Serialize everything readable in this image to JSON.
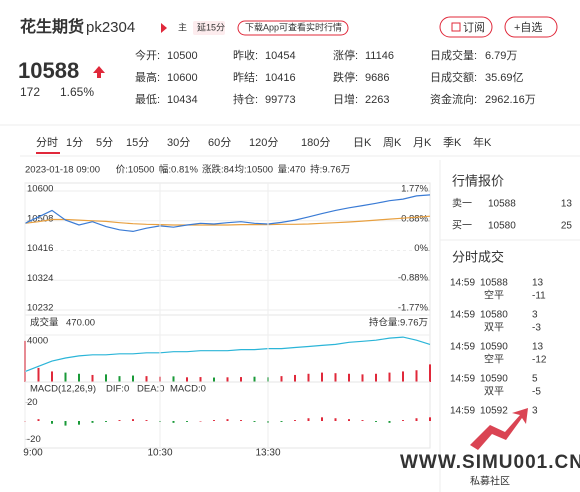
{
  "header": {
    "title": "花生期货",
    "code": "pk2304",
    "tag_main": "主",
    "tag_delay": "延15分",
    "download": "下载App可查看实时行情",
    "subscribe": "订阅",
    "watch": "+自选"
  },
  "quote": {
    "price": "10588",
    "change": "172",
    "percent": "1.65%"
  },
  "stats": [
    {
      "label": "今开:",
      "value": "10500"
    },
    {
      "label": "昨收:",
      "value": "10454"
    },
    {
      "label": "涨停:",
      "value": "11146"
    },
    {
      "label": "日成交量:",
      "value": "6.79万"
    },
    {
      "label": "最高:",
      "value": "10600"
    },
    {
      "label": "昨结:",
      "value": "10416"
    },
    {
      "label": "跌停:",
      "value": "9686"
    },
    {
      "label": "日成交额:",
      "value": "35.69亿"
    },
    {
      "label": "最低:",
      "value": "10434"
    },
    {
      "label": "持仓:",
      "value": "99773"
    },
    {
      "label": "日增:",
      "value": "2263"
    },
    {
      "label": "资金流向:",
      "value": "2962.16万"
    }
  ],
  "tabs": [
    "分时",
    "1分",
    "5分",
    "15分",
    "30分",
    "60分",
    "120分",
    "180分",
    "日K",
    "周K",
    "月K",
    "季K",
    "年K"
  ],
  "info": [
    "2023-01-18 09:00",
    "价:10500",
    "幅:0.81%",
    "涨跌:84",
    "均:10500",
    "量:470",
    "持:9.76万"
  ],
  "chart_data": {
    "type": "line",
    "x": [
      0,
      7.5,
      15,
      22.5,
      30,
      37.5,
      45,
      52.5,
      60,
      67.5,
      75,
      82.5,
      90,
      97.5,
      105,
      112.5,
      120,
      127.5,
      135,
      142.5,
      150,
      157.5,
      165,
      172.5,
      180,
      187.5,
      195,
      202.5,
      210,
      217.5,
      225
    ],
    "xlim": [
      0,
      225
    ],
    "xticks": [
      {
        "value": 0,
        "label": "9:00"
      },
      {
        "value": 75,
        "label": "10:30"
      },
      {
        "value": 135,
        "label": "13:30"
      }
    ],
    "ylim": [
      10232,
      10600
    ],
    "yticks": [
      10600,
      10508,
      10416,
      10324,
      10232
    ],
    "y2ticks": [
      {
        "value": 1.77,
        "label": "1.77%"
      },
      {
        "value": 0.88,
        "label": "0.88%"
      },
      {
        "value": 0,
        "label": "0%"
      },
      {
        "value": -0.88,
        "label": "-0.88%"
      },
      {
        "value": -1.77,
        "label": "-1.77%"
      }
    ],
    "y2lim": [
      -1.77,
      1.77
    ],
    "series": [
      {
        "name": "价",
        "color": "#3a7bd5",
        "values": [
          10500,
          10520,
          10540,
          10510,
          10495,
          10505,
          10490,
          10480,
          10475,
          10485,
          10492,
          10488,
          10495,
          10500,
          10498,
          10502,
          10505,
          10500,
          10498,
          10503,
          10510,
          10520,
          10530,
          10540,
          10548,
          10555,
          10562,
          10570,
          10575,
          10585,
          10588
        ]
      },
      {
        "name": "均",
        "color": "#e8a040",
        "values": [
          10500,
          10505,
          10512,
          10512,
          10510,
          10508,
          10506,
          10502,
          10499,
          10497,
          10496,
          10495,
          10495,
          10495,
          10495,
          10495,
          10496,
          10496,
          10496,
          10497,
          10497,
          10498,
          10500,
          10502,
          10504,
          10507,
          10510,
          10513,
          10516,
          10519,
          10522
        ]
      }
    ],
    "volume": {
      "label": "成交量",
      "value_label": "470.00",
      "hold_label": "持仓量:9.76万",
      "ylim": [
        0,
        4000
      ],
      "yticks": [
        4000
      ],
      "values": [
        3500,
        1200,
        900,
        800,
        700,
        600,
        650,
        500,
        550,
        500,
        450,
        480,
        400,
        420,
        380,
        400,
        420,
        450,
        400,
        500,
        600,
        700,
        800,
        750,
        700,
        650,
        700,
        800,
        900,
        1000,
        1500
      ],
      "hold_color": "#2bb5d8",
      "hold_lim": [
        9.4,
        9.85
      ],
      "hold": [
        9.5,
        9.55,
        9.6,
        9.63,
        9.65,
        9.66,
        9.66,
        9.67,
        9.67,
        9.68,
        9.68,
        9.69,
        9.69,
        9.7,
        9.7,
        9.7,
        9.71,
        9.71,
        9.72,
        9.72,
        9.73,
        9.74,
        9.75,
        9.76,
        9.78,
        9.79,
        9.8,
        9.82,
        9.83,
        9.8,
        9.76
      ]
    },
    "macd": {
      "label": "MACD(12,26,9)",
      "dif": "DIF:0",
      "dea": "DEA:0",
      "macd": "MACD:0",
      "ylim": [
        -25,
        25
      ],
      "yticks": [
        20,
        -20
      ],
      "values": [
        0,
        2,
        -3,
        -5,
        -4,
        -2,
        -1,
        1,
        2,
        1,
        -1,
        -2,
        -1,
        0,
        1,
        2,
        1,
        -1,
        -2,
        -1,
        1,
        3,
        4,
        3,
        2,
        1,
        -1,
        -2,
        1,
        3,
        4
      ]
    },
    "up_color": "#e0283a",
    "down_color": "#1a9a38"
  },
  "panel": {
    "quote_title": "行情报价",
    "book": [
      {
        "side": "卖一",
        "price": "10588",
        "vol": "13"
      },
      {
        "side": "买一",
        "price": "10580",
        "vol": "25"
      }
    ],
    "trades_title": "分时成交",
    "trades": [
      {
        "time": "14:59",
        "price": "10588",
        "vol": "13",
        "kind": "空平",
        "delta": "-11"
      },
      {
        "time": "14:59",
        "price": "10580",
        "vol": "3",
        "kind": "双平",
        "delta": "-3"
      },
      {
        "time": "14:59",
        "price": "10590",
        "vol": "13",
        "kind": "空平",
        "delta": "-12"
      },
      {
        "time": "14:59",
        "price": "10590",
        "vol": "5",
        "kind": "双平",
        "delta": "-5"
      },
      {
        "time": "14:59",
        "price": "10592",
        "vol": "3",
        "kind": "",
        "delta": ""
      }
    ]
  },
  "watermark": {
    "site": "WWW.SIMU001.CN",
    "name": "私募社区"
  }
}
